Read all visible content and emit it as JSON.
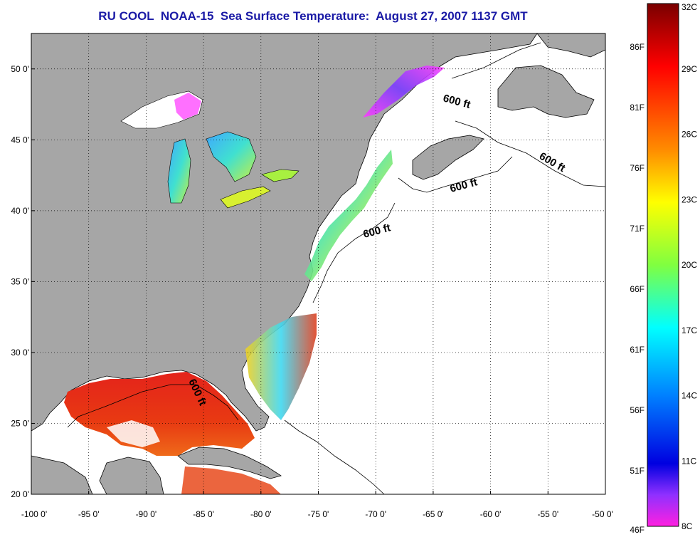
{
  "title": "RU COOL  NOAA-15  Sea Surface Temperature:  August 27, 2007 1137 GMT",
  "map": {
    "lon_range": [
      -100,
      -50
    ],
    "lat_range": [
      20,
      52.5
    ],
    "lon_ticks": [
      "-100 0'",
      "-95 0'",
      "-90 0'",
      "-85 0'",
      "-80 0'",
      "-75 0'",
      "-70 0'",
      "-65 0'",
      "-60 0'",
      "-55 0'",
      "-50 0'"
    ],
    "lat_ticks": [
      "50 0'",
      "45 0'",
      "40 0'",
      "35 0'",
      "30 0'",
      "25 0'",
      "20 0'"
    ],
    "grid": "dotted",
    "land_color": "#a6a6a6",
    "contour_labels": [
      "600 ft",
      "600 ft",
      "600 ft",
      "600 ft",
      "600 ft"
    ]
  },
  "colorbar": {
    "celsius_labels": [
      "32C",
      "29C",
      "26C",
      "23C",
      "20C",
      "17C",
      "14C",
      "11C",
      "8C"
    ],
    "fahrenheit_labels": [
      "86F",
      "81F",
      "76F",
      "71F",
      "66F",
      "61F",
      "56F",
      "51F",
      "46F"
    ],
    "range_c": [
      8,
      32
    ]
  }
}
